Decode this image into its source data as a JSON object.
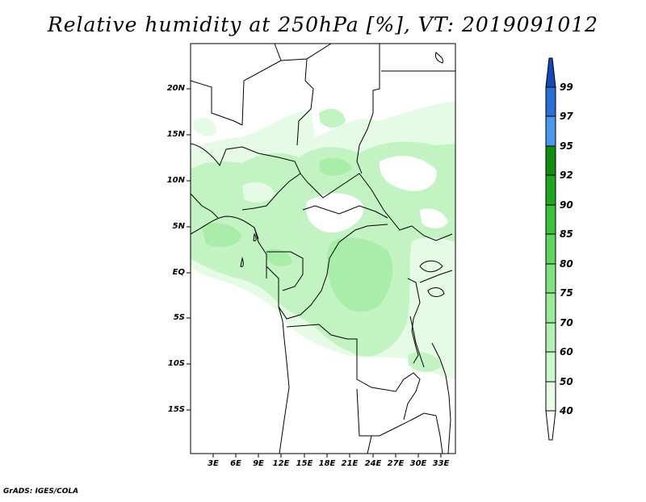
{
  "title": "Relative humidity at 250hPa [%], VT: 2019091012",
  "credit": "GrADS: IGES/COLA",
  "map": {
    "lat_labels": [
      "20N",
      "15N",
      "10N",
      "5N",
      "EQ",
      "5S",
      "10S",
      "15S"
    ],
    "lon_labels": [
      "3E",
      "6E",
      "9E",
      "12E",
      "15E",
      "18E",
      "21E",
      "24E",
      "27E",
      "30E",
      "33E"
    ]
  },
  "colorbar": {
    "labels": [
      "40",
      "50",
      "60",
      "70",
      "75",
      "80",
      "85",
      "90",
      "92",
      "95",
      "97",
      "99"
    ],
    "colors": [
      "#ffffff",
      "#e9fce9",
      "#ccf6cc",
      "#b3f0b3",
      "#99ea99",
      "#7fe27f",
      "#5fd55f",
      "#3cc33c",
      "#1fa81f",
      "#118c11",
      "#4a96e8",
      "#2a6fd6",
      "#1549b8"
    ]
  }
}
